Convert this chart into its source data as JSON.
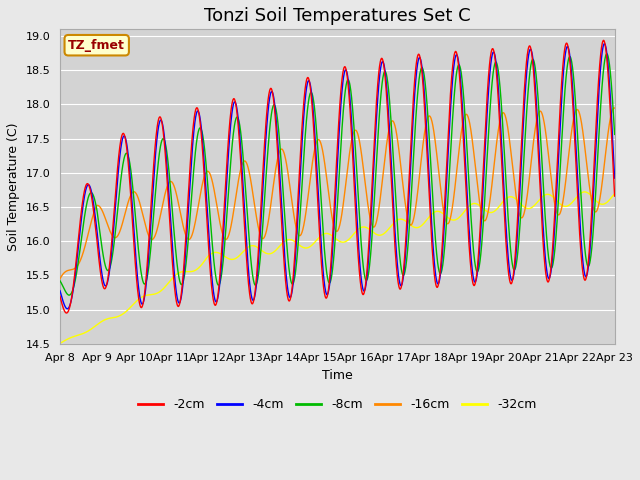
{
  "title": "Tonzi Soil Temperatures Set C",
  "xlabel": "Time",
  "ylabel": "Soil Temperature (C)",
  "ylim": [
    14.5,
    19.1
  ],
  "background_color": "#e8e8e8",
  "plot_bg_color": "#d3d3d3",
  "grid_color": "#ffffff",
  "legend_label": "TZ_fmet",
  "legend_bg": "#ffffcc",
  "legend_border": "#cc8800",
  "series_colors": {
    "-2cm": "#ff0000",
    "-4cm": "#0000ff",
    "-8cm": "#00bb00",
    "-16cm": "#ff8800",
    "-32cm": "#ffff00"
  },
  "tick_labels": [
    "Apr 8",
    "Apr 9",
    "Apr 10",
    "Apr 11",
    "Apr 12",
    "Apr 13",
    "Apr 14",
    "Apr 15",
    "Apr 16",
    "Apr 17",
    "Apr 18",
    "Apr 19",
    "Apr 20",
    "Apr 21",
    "Apr 22",
    "Apr 23"
  ],
  "yticks": [
    14.5,
    15.0,
    15.5,
    16.0,
    16.5,
    17.0,
    17.5,
    18.0,
    18.5,
    19.0
  ],
  "tick_fontsize": 8,
  "title_fontsize": 13
}
